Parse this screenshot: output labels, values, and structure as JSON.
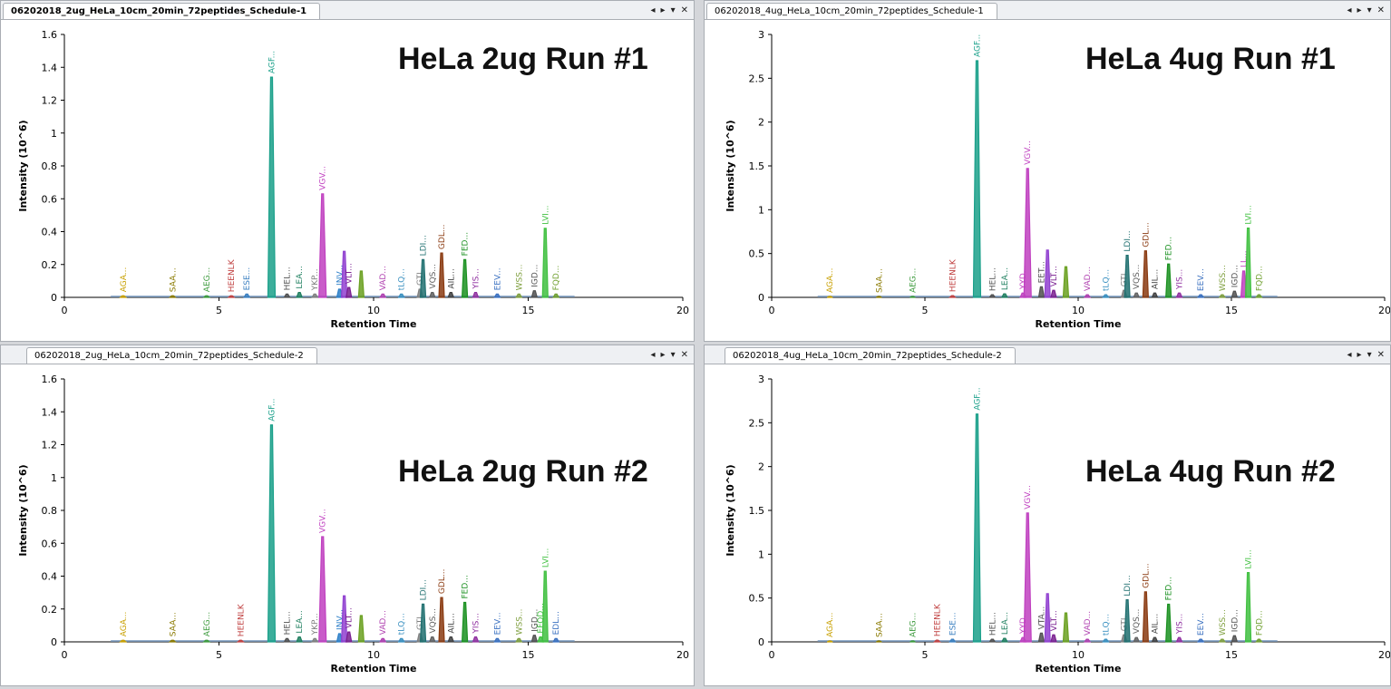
{
  "panels": [
    {
      "tab": "06202018_2ug_HeLa_10cm_20min_72peptides_Schedule-1",
      "tab_active": true,
      "run_label": "HeLa 2ug Run #1",
      "chart": {
        "type": "line",
        "xlabel": "Retention Time",
        "ylabel": "Intensity (10^6)",
        "xlim": [
          0,
          20
        ],
        "ylim": [
          0,
          1.6
        ],
        "x_ticks": [
          0,
          5,
          10,
          15,
          20
        ],
        "y_ticks": [
          0,
          0.2,
          0.4,
          0.6,
          0.8,
          1,
          1.2,
          1.4,
          1.6
        ],
        "y_tick_labels": [
          "0",
          "0.2",
          "0.4",
          "0.6",
          "0.8",
          "1",
          "1.2",
          "1.4",
          "1.6"
        ],
        "peaks": [
          {
            "label": "AGA...",
            "rt": 1.9,
            "height": 0.01,
            "color": "#c8a000"
          },
          {
            "label": "SAA...",
            "rt": 3.5,
            "height": 0.01,
            "color": "#8a7a00"
          },
          {
            "label": "AEG...",
            "rt": 4.6,
            "height": 0.01,
            "color": "#3c9a3c"
          },
          {
            "label": "HEENLK",
            "rt": 5.4,
            "height": 0.01,
            "color": "#c04040"
          },
          {
            "label": "ESE...",
            "rt": 5.9,
            "height": 0.02,
            "color": "#3a7fc0"
          },
          {
            "label": "AGF...",
            "rt": 6.7,
            "height": 1.34,
            "color": "#1aa08a"
          },
          {
            "label": "HEL...",
            "rt": 7.2,
            "height": 0.02,
            "color": "#505050"
          },
          {
            "label": "LEA...",
            "rt": 7.6,
            "height": 0.03,
            "color": "#208060"
          },
          {
            "label": "YKP...",
            "rt": 8.1,
            "height": 0.02,
            "color": "#808080"
          },
          {
            "label": "VGV...",
            "rt": 8.35,
            "height": 0.63,
            "color": "#c040c0"
          },
          {
            "label": "INV...",
            "rt": 8.9,
            "height": 0.05,
            "color": "#2c7fc8"
          },
          {
            "label": "",
            "rt": 9.05,
            "height": 0.28,
            "color": "#9040d0"
          },
          {
            "label": "VLT...",
            "rt": 9.2,
            "height": 0.06,
            "color": "#7a2090"
          },
          {
            "label": "",
            "rt": 9.6,
            "height": 0.16,
            "color": "#6aa020"
          },
          {
            "label": "VAD...",
            "rt": 10.3,
            "height": 0.02,
            "color": "#b040b0"
          },
          {
            "label": "tLQ...",
            "rt": 10.9,
            "height": 0.02,
            "color": "#3a90c0"
          },
          {
            "label": "GTI...",
            "rt": 11.5,
            "height": 0.05,
            "color": "#808080"
          },
          {
            "label": "LDI...",
            "rt": 11.6,
            "height": 0.23,
            "color": "#207070"
          },
          {
            "label": "VQS...",
            "rt": 11.9,
            "height": 0.03,
            "color": "#606060"
          },
          {
            "label": "GDL...",
            "rt": 12.2,
            "height": 0.27,
            "color": "#8a3a10"
          },
          {
            "label": "AIL...",
            "rt": 12.5,
            "height": 0.03,
            "color": "#404040"
          },
          {
            "label": "FED...",
            "rt": 12.95,
            "height": 0.23,
            "color": "#1a9020"
          },
          {
            "label": "YIS...",
            "rt": 13.3,
            "height": 0.03,
            "color": "#9030a0"
          },
          {
            "label": "EEV...",
            "rt": 14.0,
            "height": 0.02,
            "color": "#3a70c0"
          },
          {
            "label": "WSS...",
            "rt": 14.7,
            "height": 0.02,
            "color": "#80a040"
          },
          {
            "label": "IGD...",
            "rt": 15.2,
            "height": 0.04,
            "color": "#505050"
          },
          {
            "label": "LVI...",
            "rt": 15.55,
            "height": 0.42,
            "color": "#40c040"
          },
          {
            "label": "FQD...",
            "rt": 15.9,
            "height": 0.02,
            "color": "#70a030"
          }
        ]
      }
    },
    {
      "tab": "06202018_4ug_HeLa_10cm_20min_72peptides_Schedule-1",
      "tab_active": false,
      "run_label": "HeLa 4ug Run #1",
      "chart": {
        "type": "line",
        "xlabel": "Retention Time",
        "ylabel": "Intensity (10^6)",
        "xlim": [
          0,
          20
        ],
        "ylim": [
          0,
          3
        ],
        "x_ticks": [
          0,
          5,
          10,
          15,
          20
        ],
        "y_ticks": [
          0,
          0.5,
          1,
          1.5,
          2,
          2.5,
          3
        ],
        "y_tick_labels": [
          "0",
          "0.5",
          "1",
          "1.5",
          "2",
          "2.5",
          "3"
        ],
        "peaks": [
          {
            "label": "AGA...",
            "rt": 1.9,
            "height": 0.01,
            "color": "#c8a000"
          },
          {
            "label": "SAA...",
            "rt": 3.5,
            "height": 0.01,
            "color": "#8a7a00"
          },
          {
            "label": "AEG...",
            "rt": 4.6,
            "height": 0.01,
            "color": "#3c9a3c"
          },
          {
            "label": "HEENLK",
            "rt": 5.9,
            "height": 0.02,
            "color": "#c04040"
          },
          {
            "label": "AGF...",
            "rt": 6.7,
            "height": 2.7,
            "color": "#1aa08a"
          },
          {
            "label": "HEL...",
            "rt": 7.2,
            "height": 0.03,
            "color": "#505050"
          },
          {
            "label": "LEA...",
            "rt": 7.6,
            "height": 0.04,
            "color": "#208060"
          },
          {
            "label": "YYD...",
            "rt": 8.2,
            "height": 0.05,
            "color": "#c040c0"
          },
          {
            "label": "VGV...",
            "rt": 8.35,
            "height": 1.47,
            "color": "#c040c0"
          },
          {
            "label": "EET...",
            "rt": 8.8,
            "height": 0.12,
            "color": "#505050"
          },
          {
            "label": "",
            "rt": 9.0,
            "height": 0.54,
            "color": "#9040d0"
          },
          {
            "label": "VLT...",
            "rt": 9.2,
            "height": 0.08,
            "color": "#7a2090"
          },
          {
            "label": "",
            "rt": 9.6,
            "height": 0.35,
            "color": "#6aa020"
          },
          {
            "label": "VAD...",
            "rt": 10.3,
            "height": 0.03,
            "color": "#b040b0"
          },
          {
            "label": "tLQ...",
            "rt": 10.9,
            "height": 0.03,
            "color": "#3a90c0"
          },
          {
            "label": "GTI...",
            "rt": 11.5,
            "height": 0.08,
            "color": "#808080"
          },
          {
            "label": "LDI...",
            "rt": 11.6,
            "height": 0.48,
            "color": "#207070"
          },
          {
            "label": "VQS...",
            "rt": 11.9,
            "height": 0.05,
            "color": "#606060"
          },
          {
            "label": "GDL...",
            "rt": 12.2,
            "height": 0.53,
            "color": "#8a3a10"
          },
          {
            "label": "AIL...",
            "rt": 12.5,
            "height": 0.05,
            "color": "#404040"
          },
          {
            "label": "FED...",
            "rt": 12.95,
            "height": 0.38,
            "color": "#1a9020"
          },
          {
            "label": "YIS...",
            "rt": 13.3,
            "height": 0.05,
            "color": "#9030a0"
          },
          {
            "label": "EEV...",
            "rt": 14.0,
            "height": 0.03,
            "color": "#3a70c0"
          },
          {
            "label": "WSS...",
            "rt": 14.7,
            "height": 0.03,
            "color": "#80a040"
          },
          {
            "label": "IGD...",
            "rt": 15.1,
            "height": 0.07,
            "color": "#505050"
          },
          {
            "label": "LL...",
            "rt": 15.4,
            "height": 0.3,
            "color": "#c040c0"
          },
          {
            "label": "LVI...",
            "rt": 15.55,
            "height": 0.79,
            "color": "#40c040"
          },
          {
            "label": "FQD...",
            "rt": 15.9,
            "height": 0.03,
            "color": "#70a030"
          }
        ]
      }
    },
    {
      "tab": "06202018_2ug_HeLa_10cm_20min_72peptides_Schedule-2",
      "tab_active": false,
      "run_label": "HeLa 2ug Run #2",
      "chart": {
        "type": "line",
        "xlabel": "Retention Time",
        "ylabel": "Intensity (10^6)",
        "xlim": [
          0,
          20
        ],
        "ylim": [
          0,
          1.6
        ],
        "x_ticks": [
          0,
          5,
          10,
          15,
          20
        ],
        "y_ticks": [
          0,
          0.2,
          0.4,
          0.6,
          0.8,
          1,
          1.2,
          1.4,
          1.6
        ],
        "y_tick_labels": [
          "0",
          "0.2",
          "0.4",
          "0.6",
          "0.8",
          "1",
          "1.2",
          "1.4",
          "1.6"
        ],
        "peaks": [
          {
            "label": "AGA...",
            "rt": 1.9,
            "height": 0.01,
            "color": "#c8a000"
          },
          {
            "label": "SAA...",
            "rt": 3.5,
            "height": 0.01,
            "color": "#8a7a00"
          },
          {
            "label": "AEG...",
            "rt": 4.6,
            "height": 0.01,
            "color": "#3c9a3c"
          },
          {
            "label": "HEENLK",
            "rt": 5.7,
            "height": 0.01,
            "color": "#c04040"
          },
          {
            "label": "AGF...",
            "rt": 6.7,
            "height": 1.32,
            "color": "#1aa08a"
          },
          {
            "label": "HEL...",
            "rt": 7.2,
            "height": 0.02,
            "color": "#505050"
          },
          {
            "label": "LEA...",
            "rt": 7.6,
            "height": 0.03,
            "color": "#208060"
          },
          {
            "label": "YKP...",
            "rt": 8.1,
            "height": 0.02,
            "color": "#808080"
          },
          {
            "label": "VGV...",
            "rt": 8.35,
            "height": 0.64,
            "color": "#c040c0"
          },
          {
            "label": "INV...",
            "rt": 8.9,
            "height": 0.05,
            "color": "#2c7fc8"
          },
          {
            "label": "",
            "rt": 9.05,
            "height": 0.28,
            "color": "#9040d0"
          },
          {
            "label": "VLT...",
            "rt": 9.2,
            "height": 0.06,
            "color": "#7a2090"
          },
          {
            "label": "",
            "rt": 9.6,
            "height": 0.16,
            "color": "#6aa020"
          },
          {
            "label": "VAD...",
            "rt": 10.3,
            "height": 0.02,
            "color": "#b040b0"
          },
          {
            "label": "tLQ...",
            "rt": 10.9,
            "height": 0.02,
            "color": "#3a90c0"
          },
          {
            "label": "GTI...",
            "rt": 11.5,
            "height": 0.05,
            "color": "#808080"
          },
          {
            "label": "LDI...",
            "rt": 11.6,
            "height": 0.23,
            "color": "#207070"
          },
          {
            "label": "VQS...",
            "rt": 11.9,
            "height": 0.03,
            "color": "#606060"
          },
          {
            "label": "GDL...",
            "rt": 12.2,
            "height": 0.27,
            "color": "#8a3a10"
          },
          {
            "label": "AIL...",
            "rt": 12.5,
            "height": 0.03,
            "color": "#404040"
          },
          {
            "label": "FED...",
            "rt": 12.95,
            "height": 0.24,
            "color": "#1a9020"
          },
          {
            "label": "YIS...",
            "rt": 13.3,
            "height": 0.03,
            "color": "#9030a0"
          },
          {
            "label": "EEV...",
            "rt": 14.0,
            "height": 0.02,
            "color": "#3a70c0"
          },
          {
            "label": "WSS...",
            "rt": 14.7,
            "height": 0.02,
            "color": "#80a040"
          },
          {
            "label": "IGD...",
            "rt": 15.2,
            "height": 0.04,
            "color": "#505050"
          },
          {
            "label": "EFQD...",
            "rt": 15.4,
            "height": 0.03,
            "color": "#40c040"
          },
          {
            "label": "LVI...",
            "rt": 15.55,
            "height": 0.43,
            "color": "#40c040"
          },
          {
            "label": "EDL...",
            "rt": 15.9,
            "height": 0.02,
            "color": "#3a70c0"
          }
        ]
      }
    },
    {
      "tab": "06202018_4ug_HeLa_10cm_20min_72peptides_Schedule-2",
      "tab_active": false,
      "run_label": "HeLa 4ug Run #2",
      "chart": {
        "type": "line",
        "xlabel": "Retention Time",
        "ylabel": "Intensity (10^6)",
        "xlim": [
          0,
          20
        ],
        "ylim": [
          0,
          3
        ],
        "x_ticks": [
          0,
          5,
          10,
          15,
          20
        ],
        "y_ticks": [
          0,
          0.5,
          1,
          1.5,
          2,
          2.5,
          3
        ],
        "y_tick_labels": [
          "0",
          "0.5",
          "1",
          "1.5",
          "2",
          "2.5",
          "3"
        ],
        "peaks": [
          {
            "label": "AGA...",
            "rt": 1.9,
            "height": 0.01,
            "color": "#c8a000"
          },
          {
            "label": "SAA...",
            "rt": 3.5,
            "height": 0.01,
            "color": "#8a7a00"
          },
          {
            "label": "AEG...",
            "rt": 4.6,
            "height": 0.01,
            "color": "#3c9a3c"
          },
          {
            "label": "HEENLK",
            "rt": 5.4,
            "height": 0.02,
            "color": "#c04040"
          },
          {
            "label": "ESE...",
            "rt": 5.9,
            "height": 0.03,
            "color": "#3a7fc0"
          },
          {
            "label": "AGF...",
            "rt": 6.7,
            "height": 2.6,
            "color": "#1aa08a"
          },
          {
            "label": "HEL...",
            "rt": 7.2,
            "height": 0.03,
            "color": "#505050"
          },
          {
            "label": "LEA...",
            "rt": 7.6,
            "height": 0.04,
            "color": "#208060"
          },
          {
            "label": "YYD...",
            "rt": 8.2,
            "height": 0.05,
            "color": "#c040c0"
          },
          {
            "label": "VGV...",
            "rt": 8.35,
            "height": 1.47,
            "color": "#c040c0"
          },
          {
            "label": "VTA...",
            "rt": 8.8,
            "height": 0.1,
            "color": "#505050"
          },
          {
            "label": "",
            "rt": 9.0,
            "height": 0.55,
            "color": "#9040d0"
          },
          {
            "label": "VLT...",
            "rt": 9.2,
            "height": 0.08,
            "color": "#7a2090"
          },
          {
            "label": "",
            "rt": 9.6,
            "height": 0.33,
            "color": "#6aa020"
          },
          {
            "label": "VAD...",
            "rt": 10.3,
            "height": 0.03,
            "color": "#b040b0"
          },
          {
            "label": "tLQ...",
            "rt": 10.9,
            "height": 0.03,
            "color": "#3a90c0"
          },
          {
            "label": "GTI...",
            "rt": 11.5,
            "height": 0.08,
            "color": "#808080"
          },
          {
            "label": "LDI...",
            "rt": 11.6,
            "height": 0.48,
            "color": "#207070"
          },
          {
            "label": "VQS...",
            "rt": 11.9,
            "height": 0.05,
            "color": "#606060"
          },
          {
            "label": "GDL...",
            "rt": 12.2,
            "height": 0.57,
            "color": "#8a3a10"
          },
          {
            "label": "AIL...",
            "rt": 12.5,
            "height": 0.05,
            "color": "#404040"
          },
          {
            "label": "FED...",
            "rt": 12.95,
            "height": 0.43,
            "color": "#1a9020"
          },
          {
            "label": "YIS...",
            "rt": 13.3,
            "height": 0.05,
            "color": "#9030a0"
          },
          {
            "label": "EEV...",
            "rt": 14.0,
            "height": 0.03,
            "color": "#3a70c0"
          },
          {
            "label": "WSS...",
            "rt": 14.7,
            "height": 0.03,
            "color": "#80a040"
          },
          {
            "label": "IGD...",
            "rt": 15.1,
            "height": 0.07,
            "color": "#505050"
          },
          {
            "label": "LVI...",
            "rt": 15.55,
            "height": 0.79,
            "color": "#40c040"
          },
          {
            "label": "FQD...",
            "rt": 15.9,
            "height": 0.03,
            "color": "#70a030"
          }
        ]
      }
    }
  ],
  "tab_controls": [
    "◂",
    "▸",
    "▾",
    "✕"
  ],
  "icons": [
    "tab-left-icon",
    "tab-right-icon",
    "tab-menu-icon",
    "close-icon"
  ]
}
